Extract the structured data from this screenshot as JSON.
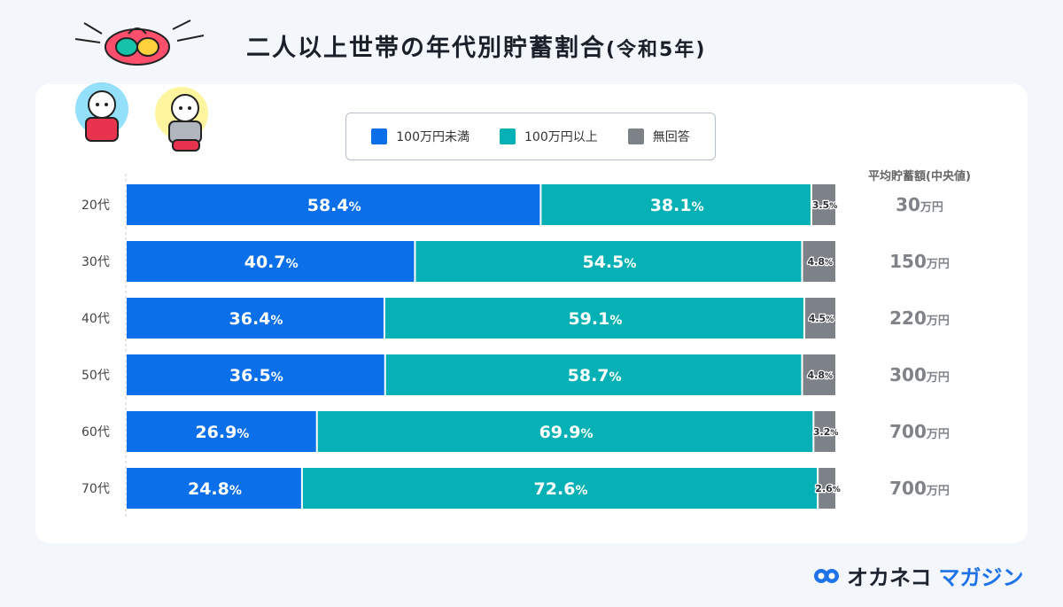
{
  "title": {
    "main": "二人以上世帯の年代別貯蓄割合",
    "sub": "(令和5年)"
  },
  "legend": [
    {
      "label": "100万円未満",
      "color": "#0a6fe8"
    },
    {
      "label": "100万円以上",
      "color": "#06b1b5"
    },
    {
      "label": "無回答",
      "color": "#7d8188"
    }
  ],
  "median_header": "平均貯蓄額(中央値)",
  "chart_data": {
    "type": "bar",
    "orientation": "horizontal",
    "stacked": true,
    "categories": [
      "20代",
      "30代",
      "40代",
      "50代",
      "60代",
      "70代"
    ],
    "series": [
      {
        "name": "100万円未満",
        "color": "#0a6fe8",
        "values": [
          58.4,
          40.7,
          36.4,
          36.5,
          26.9,
          24.8
        ]
      },
      {
        "name": "100万円以上",
        "color": "#06b1b5",
        "values": [
          38.1,
          54.5,
          59.1,
          58.7,
          69.9,
          72.6
        ]
      },
      {
        "name": "無回答",
        "color": "#7d8188",
        "values": [
          3.5,
          4.8,
          4.5,
          4.8,
          3.2,
          2.6
        ]
      }
    ],
    "value_suffix": "%",
    "xlim": [
      0,
      100
    ],
    "median_savings": {
      "unit": "万円",
      "values": [
        30,
        150,
        220,
        300,
        700,
        700
      ]
    }
  },
  "brand": {
    "name1": "オカネコ",
    "name2": "マガジン",
    "color": "#1e73e8"
  }
}
